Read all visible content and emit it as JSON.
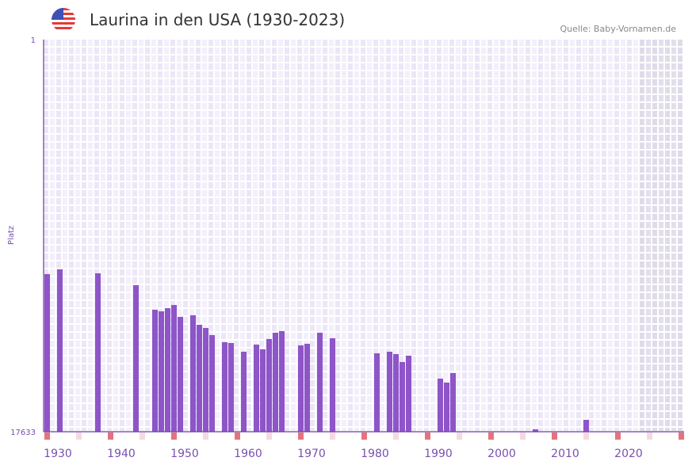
{
  "header": {
    "title": "Laurina in den USA (1930-2023)",
    "source": "Quelle: Baby-Vornamen.de",
    "flag_icon": "us-flag-icon"
  },
  "chart_data": {
    "type": "bar",
    "title": "Laurina in den USA (1930-2023)",
    "xlabel": "",
    "ylabel": "Platz",
    "y_ticks": [
      "1",
      "17633"
    ],
    "ylim": [
      17633,
      1
    ],
    "xlim": [
      1928,
      2028
    ],
    "x_ticks": [
      "1930",
      "1940",
      "1950",
      "1960",
      "1970",
      "1980",
      "1990",
      "2000",
      "2010",
      "2020"
    ],
    "grid": true,
    "shaded_from_year": 2022,
    "bar_color": "#8e55c8",
    "x": [
      1928,
      1930,
      1936,
      1942,
      1945,
      1946,
      1947,
      1948,
      1949,
      1951,
      1952,
      1953,
      1954,
      1956,
      1957,
      1959,
      1961,
      1962,
      1963,
      1964,
      1965,
      1968,
      1969,
      1971,
      1973,
      1980,
      1982,
      1983,
      1984,
      1985,
      1990,
      1991,
      1992,
      2005,
      2013
    ],
    "values": [
      10544,
      10330,
      10508,
      11042,
      12147,
      12218,
      12076,
      11933,
      12467,
      12396,
      12824,
      12966,
      13287,
      13607,
      13643,
      14035,
      13714,
      13927,
      13464,
      13180,
      13109,
      13749,
      13678,
      13180,
      13429,
      14106,
      14035,
      14141,
      14497,
      14213,
      15246,
      15424,
      14996,
      17525,
      17098
    ]
  }
}
